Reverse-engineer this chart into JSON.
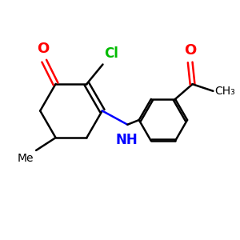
{
  "bg_color": "#ffffff",
  "bond_color": "#000000",
  "o_color": "#ff0000",
  "n_color": "#0000ff",
  "cl_color": "#00bb00",
  "line_width": 1.8,
  "figsize": [
    3.0,
    3.0
  ],
  "dpi": 100,
  "xlim": [
    0,
    10
  ],
  "ylim": [
    0,
    10
  ]
}
